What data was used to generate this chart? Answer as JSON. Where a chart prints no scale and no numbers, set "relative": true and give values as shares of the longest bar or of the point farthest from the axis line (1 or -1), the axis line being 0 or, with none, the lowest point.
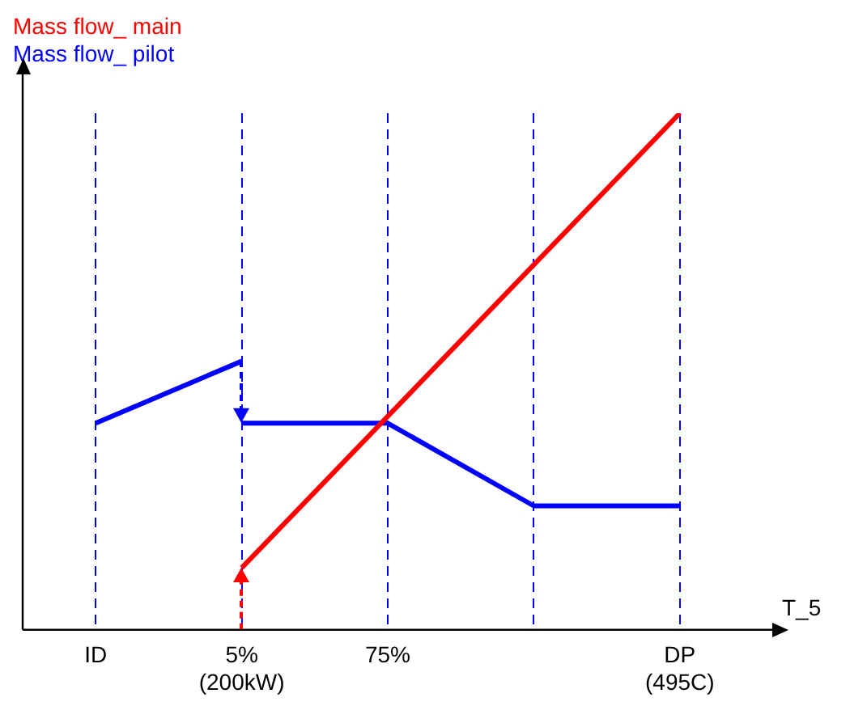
{
  "chart_data": {
    "type": "line",
    "relative": true,
    "xlabel": "T_5",
    "categories": [
      "ID",
      "5%\n(200kW)",
      "75%",
      null,
      "DP\n(495C)"
    ],
    "grid": "x",
    "legend": "top left",
    "marker": "none",
    "line_style": "solid",
    "series": [
      {
        "name": "Mass flow_ main",
        "color": "#ff0000",
        "values": [
          null,
          0.12,
          null,
          null,
          1
        ]
      },
      {
        "name": "Mass flow_ pilot",
        "color": "#0000ff",
        "values": [
          0.4,
          0.52,
          null,
          null,
          null
        ]
      },
      {
        "color": "#0000ff",
        "values": [
          null,
          0.4,
          0.4,
          0.24,
          0.24
        ]
      }
    ]
  }
}
